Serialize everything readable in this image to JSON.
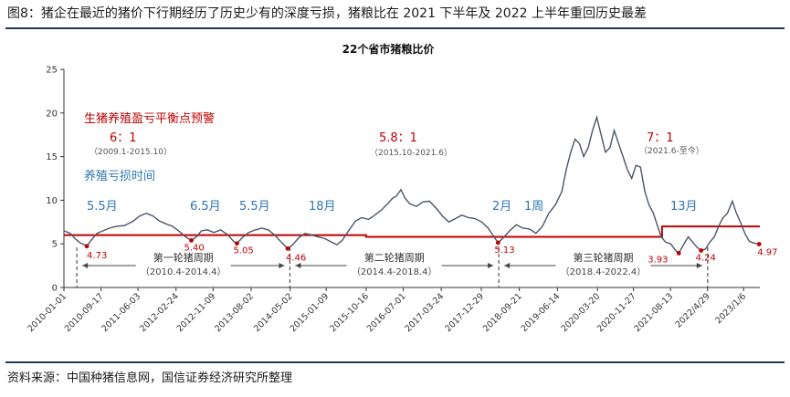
{
  "figure": {
    "caption": "图8：猪企在最近的猪价下行期经历了历史少有的深度亏损，猪粮比在 2021 下半年及 2022 上半年重回历史最差",
    "source": "资料来源：中国种猪信息网，国信证券经济研究所整理"
  },
  "colors": {
    "line": "#4a5568",
    "threshold": "#c00000",
    "annotation_red": "#c00000",
    "annotation_blue": "#2e75b6",
    "rule": "#1f3a5f"
  },
  "chart_data": {
    "type": "line",
    "title": "22个省市猪粮比价",
    "ylim": [
      0,
      25
    ],
    "yticks": [
      0,
      5,
      10,
      15,
      20,
      25
    ],
    "xticks": [
      "2010-01-01",
      "2010-09-17",
      "2011-06-03",
      "2012-02-24",
      "2012-11-09",
      "2013-08-02",
      "2014-05-02",
      "2015-01-09",
      "2015-10-16",
      "2016-07-01",
      "2017-03-24",
      "2017-12-29",
      "2018-09-21",
      "2019-06-14",
      "2020-03-20",
      "2020-11-27",
      "2021-08-13",
      "2022/4/29",
      "2023/1/6"
    ],
    "x_start": "2010-01-01",
    "x_end": "2023-04-30",
    "series": [
      {
        "points": [
          [
            "2010-01-01",
            6.5
          ],
          [
            "2010-02-15",
            6.2
          ],
          [
            "2010-03-20",
            5.6
          ],
          [
            "2010-04-25",
            5.1
          ],
          [
            "2010-05-25",
            4.9
          ],
          [
            "2010-06-10",
            4.73
          ],
          [
            "2010-07-10",
            5.4
          ],
          [
            "2010-08-20",
            6.2
          ],
          [
            "2010-10-01",
            6.5
          ],
          [
            "2010-11-15",
            6.8
          ],
          [
            "2011-01-01",
            7.0
          ],
          [
            "2011-03-01",
            7.1
          ],
          [
            "2011-05-01",
            7.6
          ],
          [
            "2011-06-15",
            8.2
          ],
          [
            "2011-08-01",
            8.5
          ],
          [
            "2011-09-15",
            8.2
          ],
          [
            "2011-11-01",
            7.6
          ],
          [
            "2011-12-15",
            7.3
          ],
          [
            "2012-02-01",
            7.0
          ],
          [
            "2012-03-20",
            6.4
          ],
          [
            "2012-05-01",
            5.8
          ],
          [
            "2012-06-10",
            5.4
          ],
          [
            "2012-07-15",
            5.8
          ],
          [
            "2012-08-20",
            6.5
          ],
          [
            "2012-10-01",
            6.6
          ],
          [
            "2012-11-15",
            6.3
          ],
          [
            "2013-01-01",
            6.6
          ],
          [
            "2013-02-15",
            6.1
          ],
          [
            "2013-04-01",
            5.3
          ],
          [
            "2013-04-25",
            5.05
          ],
          [
            "2013-06-01",
            5.7
          ],
          [
            "2013-07-15",
            6.3
          ],
          [
            "2013-09-01",
            6.6
          ],
          [
            "2013-10-15",
            6.8
          ],
          [
            "2013-12-01",
            6.6
          ],
          [
            "2014-01-15",
            6.0
          ],
          [
            "2014-03-01",
            5.2
          ],
          [
            "2014-04-15",
            4.46
          ],
          [
            "2014-05-20",
            4.9
          ],
          [
            "2014-07-01",
            5.7
          ],
          [
            "2014-08-15",
            6.2
          ],
          [
            "2014-10-01",
            6.0
          ],
          [
            "2014-11-15",
            5.8
          ],
          [
            "2015-01-01",
            5.6
          ],
          [
            "2015-02-15",
            5.2
          ],
          [
            "2015-03-25",
            4.9
          ],
          [
            "2015-05-01",
            5.4
          ],
          [
            "2015-06-15",
            6.5
          ],
          [
            "2015-08-01",
            7.6
          ],
          [
            "2015-09-15",
            8.0
          ],
          [
            "2015-11-01",
            7.8
          ],
          [
            "2015-12-15",
            8.3
          ],
          [
            "2016-02-01",
            8.9
          ],
          [
            "2016-03-15",
            9.6
          ],
          [
            "2016-04-15",
            10.2
          ],
          [
            "2016-05-15",
            10.5
          ],
          [
            "2016-06-15",
            11.2
          ],
          [
            "2016-07-15",
            10.2
          ],
          [
            "2016-08-15",
            9.6
          ],
          [
            "2016-10-01",
            9.3
          ],
          [
            "2016-11-15",
            9.8
          ],
          [
            "2017-01-01",
            9.9
          ],
          [
            "2017-02-15",
            9.1
          ],
          [
            "2017-04-01",
            8.2
          ],
          [
            "2017-05-15",
            7.5
          ],
          [
            "2017-07-01",
            7.9
          ],
          [
            "2017-08-15",
            8.3
          ],
          [
            "2017-10-01",
            8.0
          ],
          [
            "2017-11-15",
            7.9
          ],
          [
            "2018-01-01",
            7.5
          ],
          [
            "2018-02-15",
            6.8
          ],
          [
            "2018-03-20",
            6.0
          ],
          [
            "2018-04-25",
            5.13
          ],
          [
            "2018-06-01",
            5.7
          ],
          [
            "2018-07-15",
            6.5
          ],
          [
            "2018-09-01",
            7.2
          ],
          [
            "2018-10-15",
            6.8
          ],
          [
            "2018-12-01",
            6.7
          ],
          [
            "2019-01-15",
            6.2
          ],
          [
            "2019-03-01",
            7.0
          ],
          [
            "2019-04-15",
            8.5
          ],
          [
            "2019-06-01",
            9.5
          ],
          [
            "2019-07-15",
            11.0
          ],
          [
            "2019-08-15",
            13.5
          ],
          [
            "2019-09-15",
            15.5
          ],
          [
            "2019-10-15",
            17.0
          ],
          [
            "2019-11-15",
            16.5
          ],
          [
            "2019-12-15",
            15.0
          ],
          [
            "2020-01-15",
            16.0
          ],
          [
            "2020-02-15",
            18.0
          ],
          [
            "2020-03-15",
            19.5
          ],
          [
            "2020-04-15",
            17.5
          ],
          [
            "2020-05-15",
            15.5
          ],
          [
            "2020-06-15",
            16.0
          ],
          [
            "2020-07-15",
            18.0
          ],
          [
            "2020-08-15",
            16.5
          ],
          [
            "2020-09-15",
            15.0
          ],
          [
            "2020-10-15",
            13.5
          ],
          [
            "2020-11-15",
            12.5
          ],
          [
            "2020-12-15",
            14.0
          ],
          [
            "2021-01-15",
            13.8
          ],
          [
            "2021-02-15",
            11.0
          ],
          [
            "2021-03-15",
            9.5
          ],
          [
            "2021-04-15",
            8.5
          ],
          [
            "2021-05-15",
            7.0
          ],
          [
            "2021-06-10",
            5.8
          ],
          [
            "2021-07-10",
            5.2
          ],
          [
            "2021-08-15",
            5.0
          ],
          [
            "2021-09-15",
            4.3
          ],
          [
            "2021-10-10",
            3.93
          ],
          [
            "2021-11-15",
            5.0
          ],
          [
            "2021-12-15",
            5.8
          ],
          [
            "2022-01-15",
            5.2
          ],
          [
            "2022-02-15",
            4.6
          ],
          [
            "2022-03-15",
            4.24
          ],
          [
            "2022-04-15",
            4.4
          ],
          [
            "2022-05-15",
            5.2
          ],
          [
            "2022-06-15",
            5.8
          ],
          [
            "2022-07-15",
            7.0
          ],
          [
            "2022-08-15",
            8.0
          ],
          [
            "2022-09-15",
            8.5
          ],
          [
            "2022-10-20",
            9.9
          ],
          [
            "2022-11-15",
            8.6
          ],
          [
            "2022-12-15",
            7.5
          ],
          [
            "2023-01-15",
            6.2
          ],
          [
            "2023-02-15",
            5.3
          ],
          [
            "2023-03-15",
            5.1
          ],
          [
            "2023-04-25",
            4.97
          ]
        ]
      }
    ],
    "threshold": {
      "label": "生猪养殖盈亏平衡点预警",
      "segments": [
        {
          "from": "2010-01-01",
          "to": "2015-10-15",
          "value": 6
        },
        {
          "from": "2015-10-15",
          "to": "2021-06-15",
          "value": 5.8
        },
        {
          "from": "2021-06-15",
          "to": "2023-04-30",
          "value": 7
        }
      ]
    },
    "annotations": {
      "ratio_1": {
        "text": "6：1",
        "sub": "（2009.1-2015.10）"
      },
      "ratio_2": {
        "text": "5.8：1",
        "sub": "（2015.10-2021.6）"
      },
      "ratio_3": {
        "text": "7：1",
        "sub": "（2021.6-至今）"
      },
      "loss_title": "养殖亏损时间",
      "loss_durations": [
        "5.5月",
        "6.5月",
        "5.5月",
        "18月",
        "2月",
        "1周",
        "13月"
      ],
      "low_labels": [
        {
          "date": "2010-06-10",
          "value": 4.73,
          "text": "4.73"
        },
        {
          "date": "2012-06-10",
          "value": 5.4,
          "text": "5.40"
        },
        {
          "date": "2013-04-25",
          "value": 5.05,
          "text": "5.05"
        },
        {
          "date": "2014-04-15",
          "value": 4.46,
          "text": "4.46"
        },
        {
          "date": "2018-04-25",
          "value": 5.13,
          "text": "5.13"
        },
        {
          "date": "2021-10-10",
          "value": 3.93,
          "text": "3.93"
        },
        {
          "date": "2022-03-15",
          "value": 4.24,
          "text": "4.24"
        },
        {
          "date": "2023-04-25",
          "value": 4.97,
          "text": "4.97"
        }
      ],
      "cycles": [
        {
          "name": "第一轮猪周期",
          "range": "（2010.4-2014.4）",
          "start": "2010-04-01",
          "end": "2014-04-30"
        },
        {
          "name": "第二轮猪周期",
          "range": "（2014.4-2018.4）",
          "start": "2014-04-30",
          "end": "2018-04-30"
        },
        {
          "name": "第三轮猪周期",
          "range": "（2018.4-2022.4）",
          "start": "2018-04-30",
          "end": "2022-04-30"
        }
      ]
    }
  }
}
